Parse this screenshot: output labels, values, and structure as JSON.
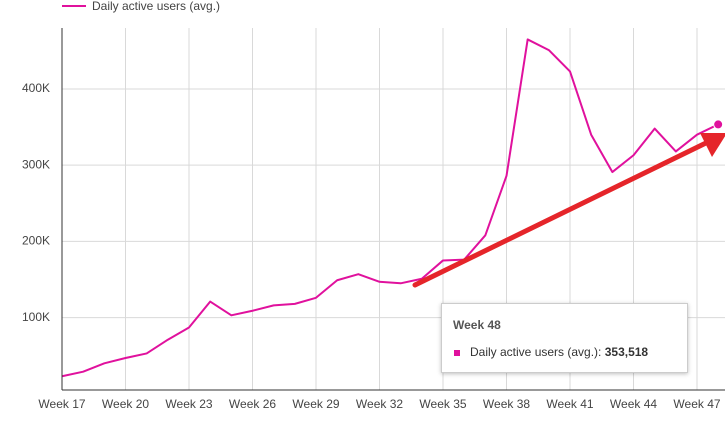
{
  "chart_data": {
    "type": "line",
    "categories": [
      "Week 17",
      null,
      null,
      "Week 20",
      null,
      null,
      "Week 23",
      null,
      null,
      "Week 26",
      null,
      null,
      "Week 29",
      null,
      null,
      "Week 32",
      null,
      null,
      "Week 35",
      null,
      null,
      "Week 38",
      null,
      null,
      "Week 41",
      null,
      null,
      "Week 44",
      null,
      null,
      "Week 47",
      null
    ],
    "series": [
      {
        "name": "Daily active users (avg.)",
        "color": "#e0119d",
        "values": [
          23000,
          29000,
          40000,
          47000,
          53000,
          71000,
          87000,
          121000,
          103000,
          109000,
          116000,
          118000,
          126000,
          149000,
          157000,
          147000,
          145000,
          151000,
          175000,
          176000,
          208000,
          286000,
          465000,
          451000,
          423000,
          340000,
          291000,
          313000,
          348000,
          318000,
          340000,
          353518
        ]
      }
    ],
    "ylim": [
      5000,
      480000
    ],
    "yticks": [
      {
        "value": 100000,
        "label": "100K"
      },
      {
        "value": 200000,
        "label": "200K"
      },
      {
        "value": 300000,
        "label": "300K"
      },
      {
        "value": 400000,
        "label": "400K"
      }
    ],
    "grid": true,
    "tooltip": {
      "title": "Week 48",
      "label": "Daily active users (avg.):",
      "value_label": "353,518",
      "index": 31
    }
  }
}
